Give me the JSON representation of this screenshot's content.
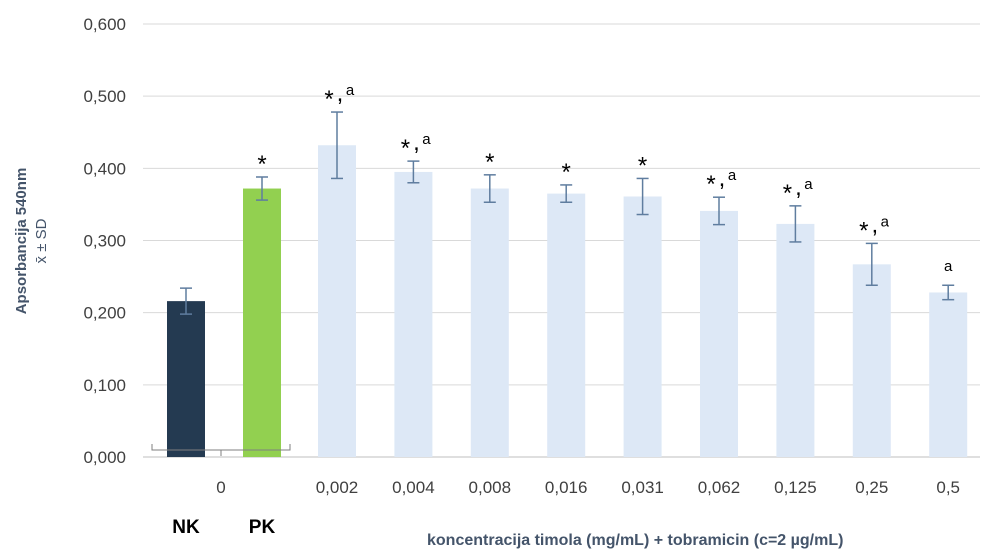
{
  "chart_data": {
    "type": "bar",
    "ylabel": "Apsorbancija",
    "ylabel_subscript": "540nm",
    "ylabel_line2": "x̄ ± SD",
    "xlabel": "koncentracija timola (mg/mL) + tobramicin (c=2 µg/mL)",
    "ylim": [
      0,
      0.6
    ],
    "y_ticks": [
      "0,000",
      "0,100",
      "0,200",
      "0,300",
      "0,400",
      "0,500",
      "0,600"
    ],
    "grid": true,
    "control_tick_label": "0",
    "controls": [
      {
        "label": "NK",
        "value": 0.216,
        "sd": 0.018,
        "color": "#243a51",
        "annotation": ""
      },
      {
        "label": "PK",
        "value": 0.372,
        "sd": 0.016,
        "color": "#92d050",
        "annotation": "*"
      }
    ],
    "categories": [
      "0,002",
      "0,004",
      "0,008",
      "0,016",
      "0,031",
      "0,062",
      "0,125",
      "0,25",
      "0,5"
    ],
    "values": [
      0.432,
      0.395,
      0.372,
      0.365,
      0.361,
      0.341,
      0.323,
      0.267,
      0.228
    ],
    "sd": [
      0.046,
      0.015,
      0.019,
      0.012,
      0.025,
      0.019,
      0.025,
      0.029,
      0.01
    ],
    "annotations": [
      "*,a",
      "*,a",
      "*",
      "*",
      "*",
      "*,a",
      "*,a",
      "*,a",
      "a"
    ],
    "bar_color": "#dde8f6",
    "error_color": "#5f7d9f",
    "grid_color": "#d9d9d9"
  }
}
